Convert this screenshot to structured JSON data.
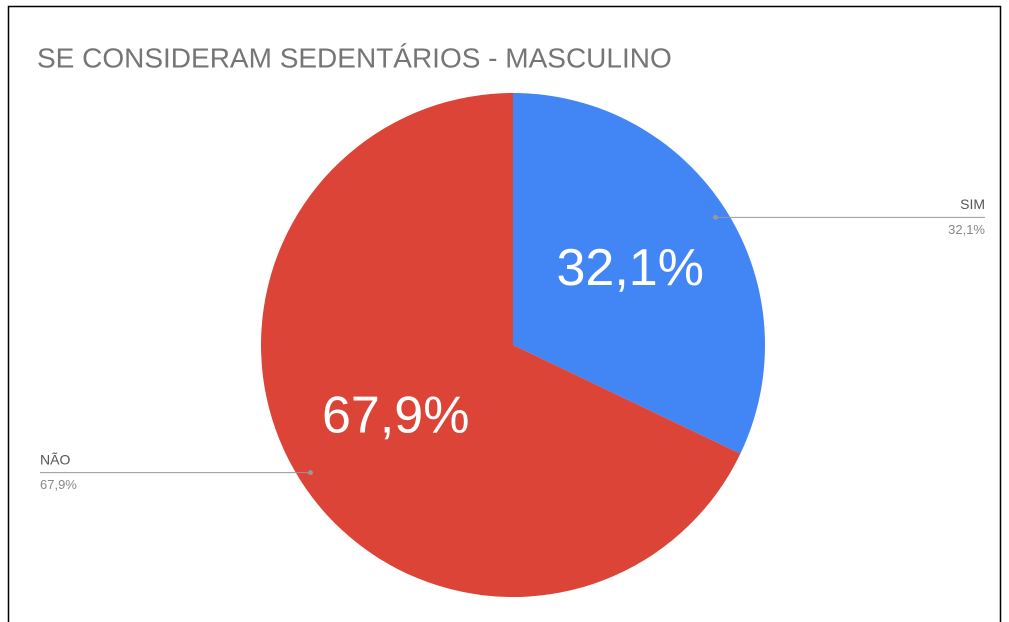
{
  "chart_data": {
    "type": "pie",
    "title": "SE CONSIDERAM SEDENTÁRIOS - MASCULINO",
    "categories": [
      "SIM",
      "NÃO"
    ],
    "values": [
      32.1,
      67.9
    ],
    "value_labels": [
      "32,1%",
      "67,9%"
    ],
    "colors": [
      "#4285f4",
      "#db4437"
    ]
  }
}
